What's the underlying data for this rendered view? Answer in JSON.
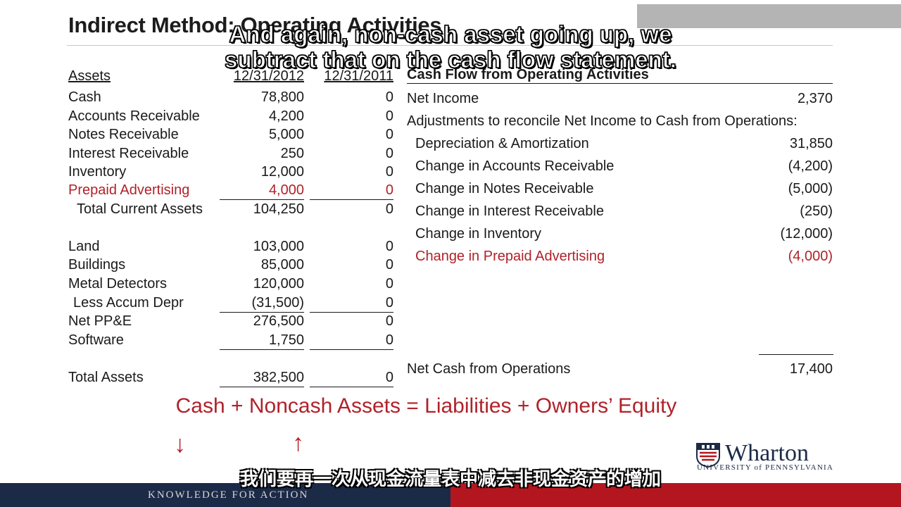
{
  "slide": {
    "title": "Indirect Method: Operating Activities",
    "balance_sheet": {
      "header_label": "Assets",
      "header_col1": "12/31/2012",
      "header_col2": "12/31/2011",
      "rows": [
        {
          "label": "Cash",
          "v1": "78,800",
          "v2": "0"
        },
        {
          "label": "Accounts Receivable",
          "v1": "4,200",
          "v2": "0"
        },
        {
          "label": "Notes Receivable",
          "v1": "5,000",
          "v2": "0"
        },
        {
          "label": "Interest Receivable",
          "v1": "250",
          "v2": "0"
        },
        {
          "label": "Inventory",
          "v1": "12,000",
          "v2": "0"
        },
        {
          "label": "Prepaid Advertising",
          "v1": "4,000",
          "v2": "0"
        },
        {
          "label": "Total Current Assets",
          "v1": "104,250",
          "v2": "0"
        },
        {
          "label": "Land",
          "v1": "103,000",
          "v2": "0"
        },
        {
          "label": "Buildings",
          "v1": "85,000",
          "v2": "0"
        },
        {
          "label": "Metal Detectors",
          "v1": "120,000",
          "v2": "0"
        },
        {
          "label": "Less Accum Depr",
          "v1": "(31,500)",
          "v2": "0"
        },
        {
          "label": "Net PP&E",
          "v1": "276,500",
          "v2": "0"
        },
        {
          "label": "Software",
          "v1": "1,750",
          "v2": "0"
        },
        {
          "label": "Total Assets",
          "v1": "382,500",
          "v2": "0"
        }
      ]
    },
    "cash_flow": {
      "header": "Cash Flow from Operating Activities",
      "net_income_label": "Net Income",
      "net_income_value": "2,370",
      "adjustments_label": "Adjustments to reconcile Net Income to Cash from Operations:",
      "adjustments": [
        {
          "label": "Depreciation & Amortization",
          "value": "31,850"
        },
        {
          "label": "Change in Accounts Receivable",
          "value": "(4,200)"
        },
        {
          "label": "Change in Notes Receivable",
          "value": "(5,000)"
        },
        {
          "label": "Change in Interest Receivable",
          "value": "(250)"
        },
        {
          "label": "Change in Inventory",
          "value": "(12,000)"
        },
        {
          "label": "Change in Prepaid Advertising",
          "value": "(4,000)"
        }
      ],
      "net_cash_label": "Net Cash from Operations",
      "net_cash_value": "17,400"
    },
    "equation": "Cash + Noncash Assets = Liabilities + Owners’ Equity",
    "arrow_down": "↓",
    "arrow_up": "↑"
  },
  "captions": {
    "english_line1": "And again, non-cash asset going up, we",
    "english_line2": "subtract that on the cash flow statement.",
    "chinese": "我们要再一次从现金流量表中减去非现金资产的增加"
  },
  "footer": {
    "tagline": "KNOWLEDGE FOR ACTION",
    "logo_word": "Wharton",
    "logo_sub": "UNIVERSITY of PENNSYLVANIA"
  },
  "colors": {
    "accent_red": "#b0222a",
    "navy": "#1b2a47",
    "footer_red": "#b4161f"
  }
}
